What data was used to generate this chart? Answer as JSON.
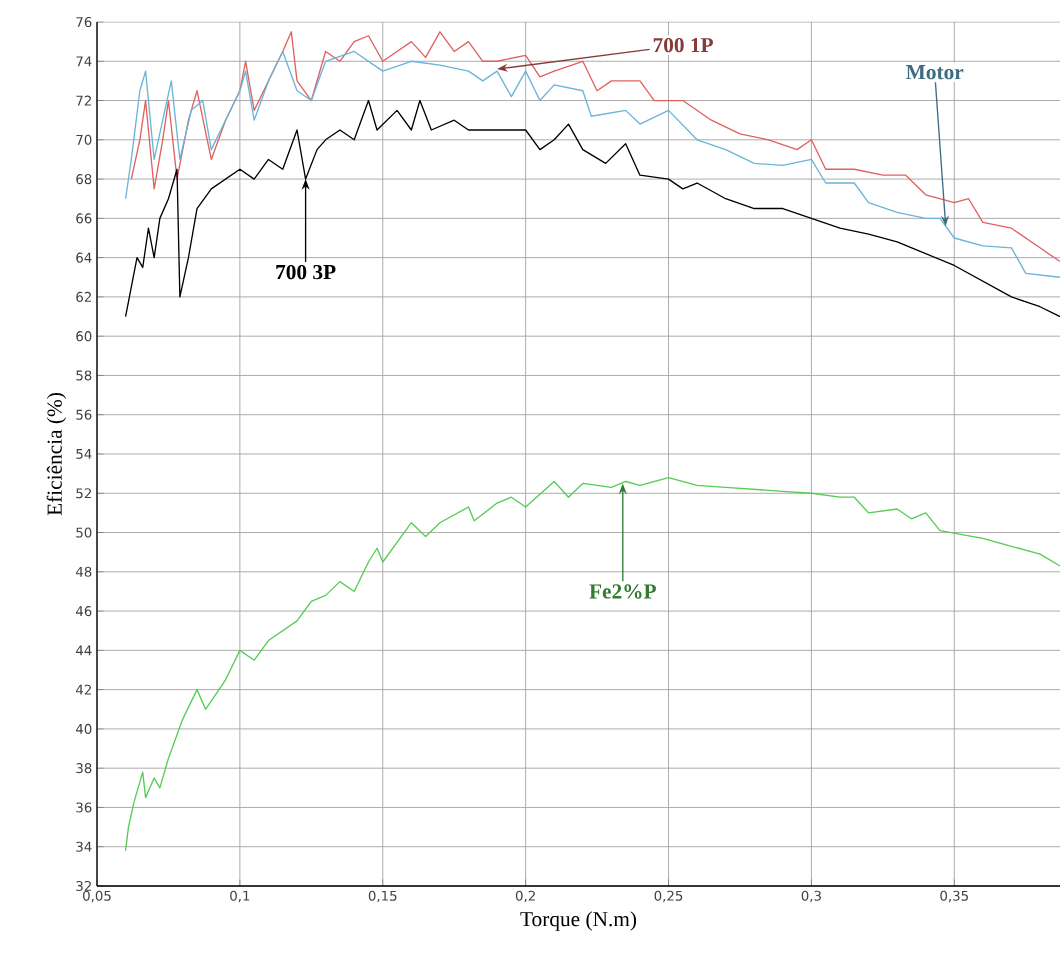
{
  "chart_data": {
    "type": "line",
    "xlabel": "Torque (N.m)",
    "ylabel": "Eficiência (%)",
    "xlim": [
      0.05,
      0.387
    ],
    "ylim": [
      32,
      76
    ],
    "xticks": [
      {
        "value": 0.05,
        "label": "0,05"
      },
      {
        "value": 0.1,
        "label": "0,1"
      },
      {
        "value": 0.15,
        "label": "0,15"
      },
      {
        "value": 0.2,
        "label": "0,2"
      },
      {
        "value": 0.25,
        "label": "0,25"
      },
      {
        "value": 0.3,
        "label": "0,3"
      },
      {
        "value": 0.35,
        "label": "0,35"
      }
    ],
    "yticks": [
      32,
      34,
      36,
      38,
      40,
      42,
      44,
      46,
      48,
      50,
      52,
      54,
      56,
      58,
      60,
      62,
      64,
      66,
      68,
      70,
      72,
      74,
      76
    ],
    "grid": true,
    "marker": "none",
    "line_style": "solid",
    "series": [
      {
        "color": "#e06060",
        "x": [
          0.062,
          0.065,
          0.067,
          0.07,
          0.073,
          0.075,
          0.078,
          0.082,
          0.085,
          0.09,
          0.095,
          0.1,
          0.102,
          0.105,
          0.11,
          0.115,
          0.118,
          0.12,
          0.125,
          0.13,
          0.135,
          0.14,
          0.145,
          0.15,
          0.155,
          0.16,
          0.165,
          0.17,
          0.175,
          0.18,
          0.185,
          0.19,
          0.2,
          0.205,
          0.21,
          0.22,
          0.225,
          0.23,
          0.24,
          0.245,
          0.255,
          0.265,
          0.275,
          0.285,
          0.295,
          0.3,
          0.305,
          0.315,
          0.325,
          0.333,
          0.34,
          0.35,
          0.355,
          0.36,
          0.37,
          0.38,
          0.387
        ],
        "values": [
          68,
          70,
          72,
          67.5,
          70,
          72,
          68,
          71,
          72.5,
          69,
          71,
          72.5,
          74,
          71.5,
          73,
          74.5,
          75.5,
          73,
          72,
          74.5,
          74,
          75,
          75.3,
          74,
          74.5,
          75,
          74.2,
          75.5,
          74.5,
          75,
          74,
          74,
          74.3,
          73.2,
          73.5,
          74,
          72.5,
          73,
          73,
          72,
          72,
          71,
          70.3,
          70,
          69.5,
          70,
          68.5,
          68.5,
          68.2,
          68.2,
          67.2,
          66.8,
          67,
          65.8,
          65.5,
          64.5,
          63.8
        ]
      },
      {
        "color": "#6ab4d8",
        "x": [
          0.06,
          0.062,
          0.065,
          0.067,
          0.07,
          0.073,
          0.076,
          0.079,
          0.083,
          0.087,
          0.09,
          0.095,
          0.1,
          0.102,
          0.105,
          0.11,
          0.115,
          0.12,
          0.125,
          0.13,
          0.14,
          0.15,
          0.16,
          0.17,
          0.18,
          0.185,
          0.19,
          0.195,
          0.2,
          0.205,
          0.21,
          0.22,
          0.223,
          0.235,
          0.24,
          0.25,
          0.26,
          0.27,
          0.28,
          0.29,
          0.3,
          0.305,
          0.315,
          0.32,
          0.33,
          0.34,
          0.345,
          0.35,
          0.36,
          0.37,
          0.375,
          0.387
        ],
        "values": [
          67,
          69,
          72.5,
          73.5,
          69,
          71,
          73,
          69,
          71.5,
          72,
          69.5,
          71,
          72.5,
          73.5,
          71,
          73,
          74.5,
          72.5,
          72,
          74,
          74.5,
          73.5,
          74,
          73.8,
          73.5,
          73,
          73.5,
          72.2,
          73.5,
          72,
          72.8,
          72.5,
          71.2,
          71.5,
          70.8,
          71.5,
          70,
          69.5,
          68.8,
          68.7,
          69,
          67.8,
          67.8,
          66.8,
          66.3,
          66,
          66,
          65,
          64.6,
          64.5,
          63.2,
          63
        ]
      },
      {
        "color": "#000000",
        "x": [
          0.06,
          0.062,
          0.064,
          0.066,
          0.068,
          0.07,
          0.072,
          0.075,
          0.078,
          0.079,
          0.082,
          0.085,
          0.09,
          0.095,
          0.1,
          0.105,
          0.11,
          0.115,
          0.12,
          0.123,
          0.127,
          0.13,
          0.135,
          0.14,
          0.145,
          0.148,
          0.155,
          0.16,
          0.163,
          0.167,
          0.175,
          0.18,
          0.19,
          0.2,
          0.205,
          0.21,
          0.215,
          0.22,
          0.228,
          0.235,
          0.24,
          0.25,
          0.255,
          0.26,
          0.27,
          0.28,
          0.29,
          0.3,
          0.31,
          0.32,
          0.33,
          0.34,
          0.35,
          0.36,
          0.37,
          0.38,
          0.387
        ],
        "values": [
          61,
          62.5,
          64,
          63.5,
          65.5,
          64,
          66,
          67,
          68.5,
          62,
          64,
          66.5,
          67.5,
          68,
          68.5,
          68,
          69,
          68.5,
          70.5,
          68,
          69.5,
          70,
          70.5,
          70,
          72,
          70.5,
          71.5,
          70.5,
          72,
          70.5,
          71,
          70.5,
          70.5,
          70.5,
          69.5,
          70,
          70.8,
          69.5,
          68.8,
          69.8,
          68.2,
          68,
          67.5,
          67.8,
          67,
          66.5,
          66.5,
          66,
          65.5,
          65.2,
          64.8,
          64.2,
          63.6,
          62.8,
          62,
          61.5,
          61
        ]
      },
      {
        "color": "#55cc55",
        "x": [
          0.06,
          0.061,
          0.063,
          0.066,
          0.067,
          0.07,
          0.072,
          0.075,
          0.08,
          0.085,
          0.088,
          0.095,
          0.1,
          0.105,
          0.11,
          0.12,
          0.125,
          0.13,
          0.135,
          0.14,
          0.145,
          0.148,
          0.15,
          0.155,
          0.16,
          0.165,
          0.17,
          0.18,
          0.182,
          0.19,
          0.195,
          0.2,
          0.21,
          0.215,
          0.22,
          0.23,
          0.235,
          0.24,
          0.25,
          0.26,
          0.27,
          0.28,
          0.29,
          0.3,
          0.31,
          0.315,
          0.32,
          0.33,
          0.335,
          0.34,
          0.345,
          0.36,
          0.37,
          0.38,
          0.387
        ],
        "values": [
          33.8,
          35,
          36.3,
          37.8,
          36.5,
          37.5,
          37,
          38.5,
          40.5,
          42,
          41,
          42.5,
          44,
          43.5,
          44.5,
          45.5,
          46.5,
          46.8,
          47.5,
          47,
          48.5,
          49.2,
          48.5,
          49.5,
          50.5,
          49.8,
          50.5,
          51.3,
          50.6,
          51.5,
          51.8,
          51.3,
          52.6,
          51.8,
          52.5,
          52.3,
          52.6,
          52.4,
          52.8,
          52.4,
          52.3,
          52.2,
          52.1,
          52,
          51.8,
          51.8,
          51,
          51.2,
          50.7,
          51,
          50.1,
          49.7,
          49.3,
          48.9,
          48.3
        ]
      }
    ],
    "annotations": [
      {
        "text": "700 1P",
        "x": 0.19,
        "y": 73.6
      },
      {
        "text": "Motor",
        "x": 0.347,
        "y": 65.6
      },
      {
        "text": "700 3P",
        "x": 0.123,
        "y": 68
      },
      {
        "text": "Fe2%P",
        "x": 0.234,
        "y": 52.5
      }
    ]
  }
}
